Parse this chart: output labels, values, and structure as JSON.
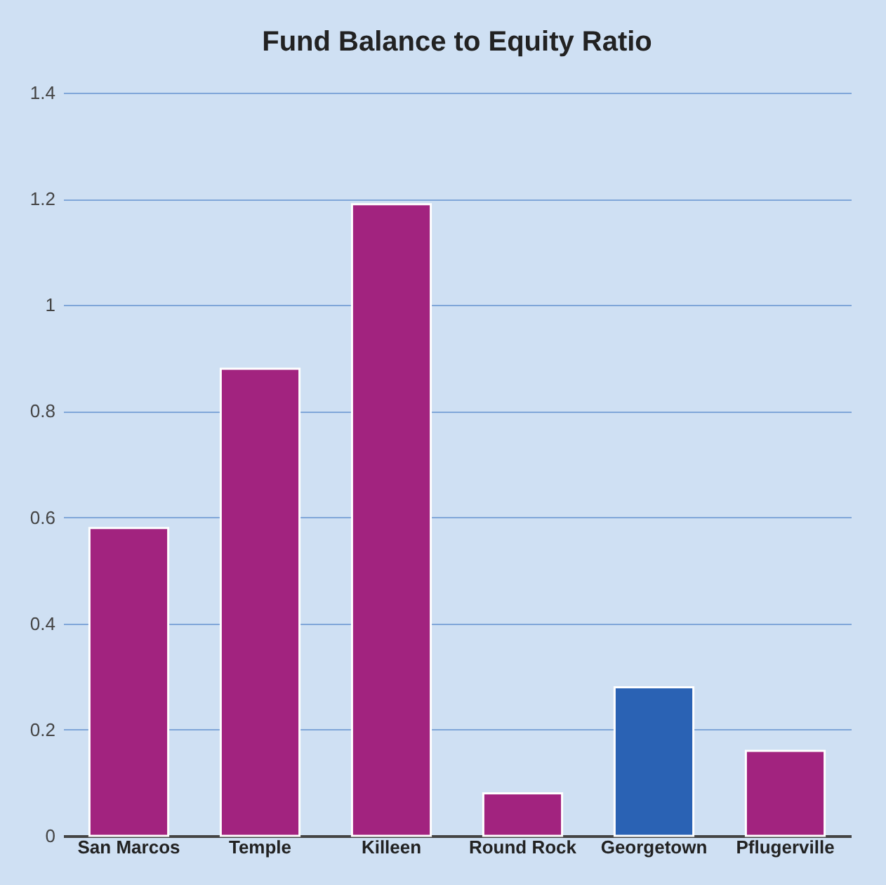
{
  "chart_data": {
    "type": "bar",
    "title": "Fund Balance to Equity Ratio",
    "categories": [
      "San Marcos",
      "Temple",
      "Killeen",
      "Round Rock",
      "Georgetown",
      "Pflugerville"
    ],
    "values": [
      0.58,
      0.88,
      1.19,
      0.08,
      0.28,
      0.16
    ],
    "colors": [
      "#a2237f",
      "#a2237f",
      "#a2237f",
      "#a2237f",
      "#2a62b4",
      "#a2237f"
    ],
    "ylim": [
      0,
      1.4
    ],
    "yticks": [
      0,
      0.2,
      0.4,
      0.6,
      0.8,
      1,
      1.2,
      1.4
    ],
    "grid": "y",
    "legend": false
  }
}
